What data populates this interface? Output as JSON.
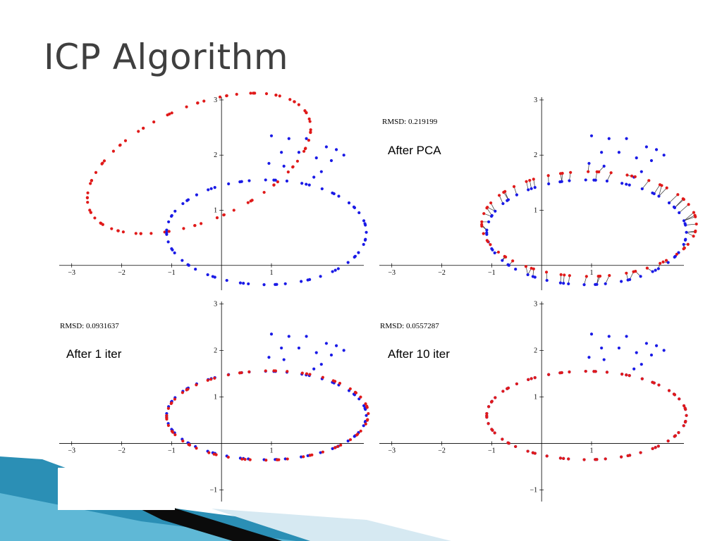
{
  "slide": {
    "title": "ICP Algorithm"
  },
  "colors": {
    "model": "#e01a1a",
    "data": "#1a1ae6",
    "link": "#333333"
  },
  "chart_data": [
    {
      "type": "scatter",
      "title": "",
      "caption": "",
      "rmsd": "",
      "xlim": [
        -3.25,
        2.85
      ],
      "ylim": [
        -0.45,
        3.05
      ],
      "xticks": [
        -3,
        -2,
        -1,
        1
      ],
      "xtick_labels": [
        "−3",
        "−2",
        "−1",
        "1"
      ],
      "yticks": [
        1,
        2,
        3
      ],
      "ytick_labels": [
        "1",
        "2",
        "3"
      ],
      "series": [
        {
          "color": "red",
          "shape": "ellipse",
          "cx": -0.45,
          "cy": 1.85,
          "rx": 2.35,
          "ry": 1.05,
          "rot": 0.35,
          "n": 90
        },
        {
          "color": "blue",
          "shape": "ellipse",
          "cx": 0.9,
          "cy": 0.6,
          "rx": 2.0,
          "ry": 0.95,
          "rot": 0.0,
          "n": 70,
          "extra": [
            [
              1.0,
              2.35
            ],
            [
              1.35,
              2.3
            ],
            [
              1.7,
              2.3
            ],
            [
              2.1,
              2.15
            ],
            [
              2.3,
              2.1
            ],
            [
              2.45,
              2.0
            ],
            [
              1.2,
              2.05
            ],
            [
              1.55,
              2.05
            ],
            [
              1.9,
              1.95
            ],
            [
              2.2,
              1.9
            ],
            [
              0.95,
              1.85
            ],
            [
              1.25,
              1.8
            ],
            [
              1.85,
              1.6
            ],
            [
              2.0,
              1.7
            ]
          ]
        }
      ],
      "links": false
    },
    {
      "type": "scatter",
      "caption": "After PCA",
      "rmsd": "RMSD: 0.219199",
      "xlim": [
        -3.25,
        2.85
      ],
      "ylim": [
        -0.45,
        3.05
      ],
      "xticks": [
        -3,
        -2,
        -1,
        1
      ],
      "xtick_labels": [
        "−3",
        "−2",
        "−1",
        "1"
      ],
      "yticks": [
        1,
        2,
        3
      ],
      "ytick_labels": [
        "1",
        "2",
        "3"
      ],
      "series": [
        {
          "color": "blue",
          "shape": "ellipse",
          "cx": 0.9,
          "cy": 0.6,
          "rx": 2.0,
          "ry": 0.95,
          "rot": 0.0,
          "n": 70,
          "extra": [
            [
              1.0,
              2.35
            ],
            [
              1.35,
              2.3
            ],
            [
              1.7,
              2.3
            ],
            [
              2.1,
              2.15
            ],
            [
              2.3,
              2.1
            ],
            [
              2.45,
              2.0
            ],
            [
              1.2,
              2.05
            ],
            [
              1.55,
              2.05
            ],
            [
              1.9,
              1.95
            ],
            [
              2.2,
              1.9
            ],
            [
              0.95,
              1.85
            ],
            [
              1.25,
              1.8
            ],
            [
              1.85,
              1.6
            ],
            [
              2.0,
              1.7
            ]
          ]
        },
        {
          "color": "red",
          "shape": "ellipse",
          "cx": 0.95,
          "cy": 0.75,
          "rx": 2.15,
          "ry": 0.95,
          "rot": 0.0,
          "n": 70
        }
      ],
      "links": true
    },
    {
      "type": "scatter",
      "caption": "After 1 iter",
      "rmsd": "RMSD: 0.0931637",
      "xlim": [
        -3.25,
        2.85
      ],
      "ylim": [
        -1.25,
        3.05
      ],
      "xticks": [
        -3,
        -2,
        -1,
        1
      ],
      "xtick_labels": [
        "−3",
        "−2",
        "−1",
        "1"
      ],
      "yticks": [
        -1,
        1,
        2,
        3
      ],
      "ytick_labels": [
        "−1",
        "1",
        "2",
        "3"
      ],
      "series": [
        {
          "color": "blue",
          "shape": "ellipse",
          "cx": 0.9,
          "cy": 0.6,
          "rx": 2.0,
          "ry": 0.95,
          "rot": 0.0,
          "n": 70,
          "extra": [
            [
              1.0,
              2.35
            ],
            [
              1.35,
              2.3
            ],
            [
              1.7,
              2.3
            ],
            [
              2.1,
              2.15
            ],
            [
              2.3,
              2.1
            ],
            [
              2.45,
              2.0
            ],
            [
              1.2,
              2.05
            ],
            [
              1.55,
              2.05
            ],
            [
              1.9,
              1.95
            ],
            [
              2.2,
              1.9
            ],
            [
              0.95,
              1.85
            ],
            [
              1.25,
              1.8
            ],
            [
              1.85,
              1.6
            ],
            [
              2.0,
              1.7
            ]
          ]
        },
        {
          "color": "red",
          "shape": "ellipse",
          "cx": 0.92,
          "cy": 0.6,
          "rx": 2.02,
          "ry": 0.96,
          "rot": 0.02,
          "n": 70
        }
      ],
      "links": true
    },
    {
      "type": "scatter",
      "caption": "After 10 iter",
      "rmsd": "RMSD: 0.0557287",
      "xlim": [
        -3.25,
        2.85
      ],
      "ylim": [
        -1.25,
        3.05
      ],
      "xticks": [
        -3,
        -2,
        -1,
        1
      ],
      "xtick_labels": [
        "−3",
        "−2",
        "−1",
        "1"
      ],
      "yticks": [
        -1,
        1,
        2,
        3
      ],
      "ytick_labels": [
        "−1",
        "1",
        "2",
        "3"
      ],
      "series": [
        {
          "color": "blue",
          "shape": "ellipse",
          "cx": 0.9,
          "cy": 0.6,
          "rx": 2.0,
          "ry": 0.95,
          "rot": 0.0,
          "n": 70,
          "extra": [
            [
              1.0,
              2.35
            ],
            [
              1.35,
              2.3
            ],
            [
              1.7,
              2.3
            ],
            [
              2.1,
              2.15
            ],
            [
              2.3,
              2.1
            ],
            [
              2.45,
              2.0
            ],
            [
              1.2,
              2.05
            ],
            [
              1.55,
              2.05
            ],
            [
              1.9,
              1.95
            ],
            [
              2.2,
              1.9
            ],
            [
              0.95,
              1.85
            ],
            [
              1.25,
              1.8
            ],
            [
              1.85,
              1.6
            ],
            [
              2.0,
              1.7
            ]
          ]
        },
        {
          "color": "red",
          "shape": "ellipse",
          "cx": 0.9,
          "cy": 0.6,
          "rx": 2.0,
          "ry": 0.95,
          "rot": 0.0,
          "n": 70
        }
      ],
      "links": false
    }
  ]
}
